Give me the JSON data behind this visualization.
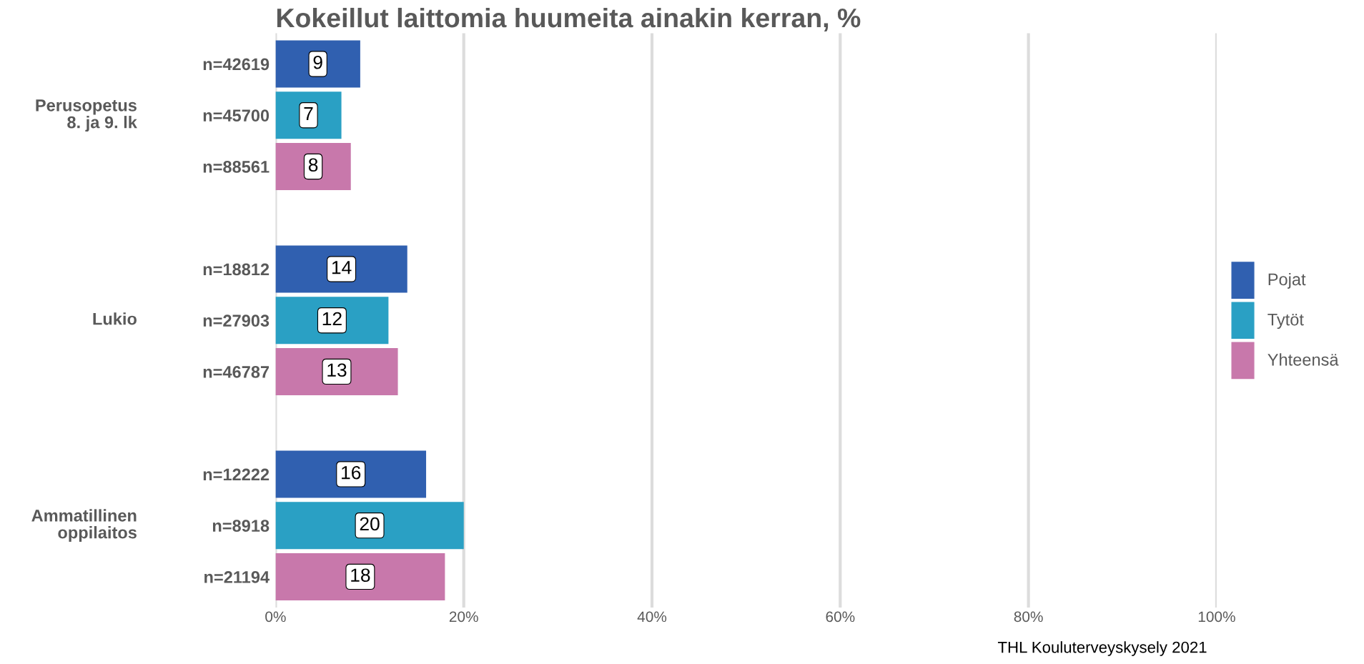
{
  "chart_data": {
    "type": "bar",
    "orientation": "horizontal",
    "title": "Kokeillut laittomia huumeita ainakin kerran, %",
    "categories": [
      "n=42619",
      "n=45700",
      "n=88561",
      null,
      "n=18812",
      "n=27903",
      "n=46787",
      null,
      "n=12222",
      "n=8918",
      "n=21194"
    ],
    "series": [
      {
        "name": "Pojat",
        "color": "#3060b0",
        "values": [
          9,
          null,
          null,
          null,
          14,
          null,
          null,
          null,
          16,
          null,
          null
        ]
      },
      {
        "name": "Tytöt",
        "color": "#2aa0c4",
        "values": [
          null,
          7,
          null,
          null,
          null,
          12,
          null,
          null,
          null,
          20,
          null
        ]
      },
      {
        "name": "Yhteensä",
        "color": "#c878ab",
        "values": [
          null,
          null,
          8,
          null,
          null,
          null,
          13,
          null,
          null,
          null,
          18
        ]
      }
    ],
    "xlim": [
      0,
      100
    ],
    "xticks": [
      {
        "value": 0,
        "label": "0%"
      },
      {
        "value": 20,
        "label": "20%"
      },
      {
        "value": 40,
        "label": "40%"
      },
      {
        "value": 60,
        "label": "60%"
      },
      {
        "value": 80,
        "label": "80%"
      },
      {
        "value": 100,
        "label": "100%"
      }
    ],
    "grid": "x",
    "legend": "right",
    "data_labels": true,
    "annotations": [
      "Perusopetus\n8. ja 9. lk",
      "Lukio",
      "Ammatillinen\noppilaitos",
      "THL Kouluterveyskysely 2021"
    ]
  }
}
